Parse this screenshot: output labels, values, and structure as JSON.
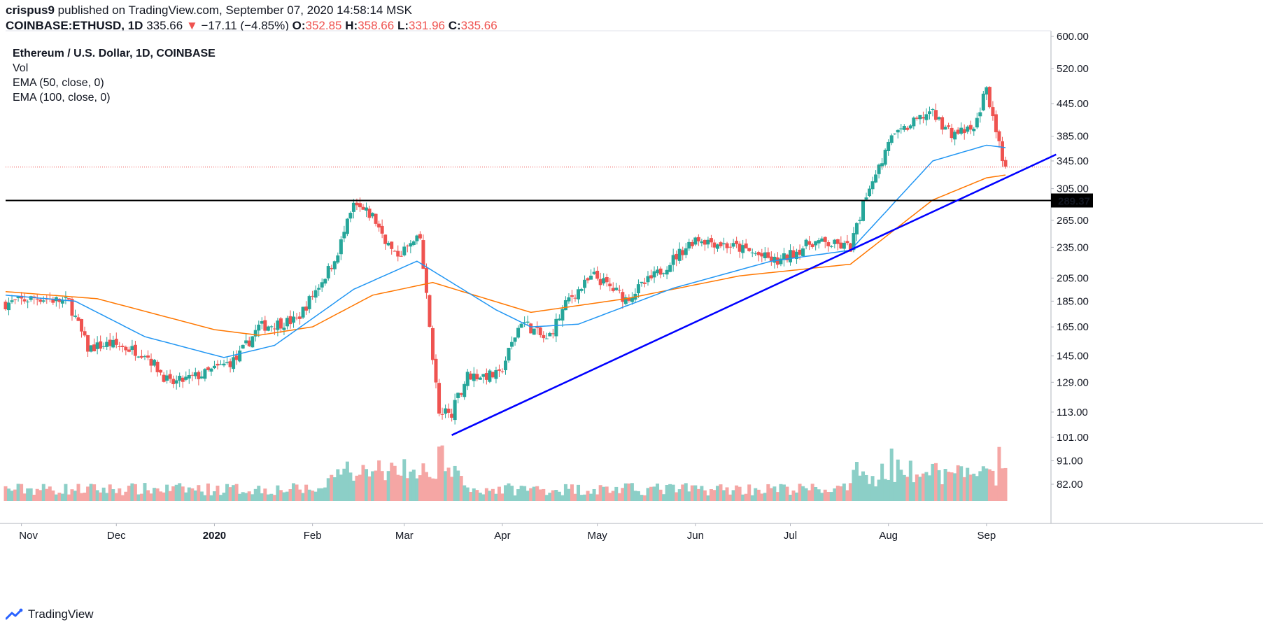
{
  "header": {
    "publisher": "crispus9",
    "published_text": "published on TradingView.com, September 07, 2020 14:58:14 MSK",
    "symbol": "COINBASE:ETHUSD, 1D",
    "last": "335.66",
    "arrow": "▼",
    "change": "−17.11 (−4.85%)",
    "o_label": "O:",
    "o": "352.85",
    "h_label": "H:",
    "h": "358.66",
    "l_label": "L:",
    "l": "331.96",
    "c_label": "C:",
    "c": "335.66"
  },
  "legend": {
    "title": "Ethereum / U.S. Dollar, 1D, COINBASE",
    "vol": "Vol",
    "ema50": "EMA (50, close, 0)",
    "ema100": "EMA (100, close, 0)"
  },
  "footer": {
    "brand": "TradingView",
    "icon": "tradingview-logo-icon"
  },
  "colors": {
    "up": "#26a69a",
    "down": "#ef5350",
    "ema50": "#2196f3",
    "ema100": "#ff7700",
    "trendline": "#0000ff",
    "hline": "#000000"
  },
  "chart_data": {
    "type": "candlestick",
    "symbol": "ETHUSD",
    "y_axis": {
      "scale": "log",
      "ticks": [
        82,
        91,
        101,
        113,
        129,
        145,
        165,
        185,
        205,
        235,
        265,
        305,
        345,
        385,
        445,
        520,
        600
      ],
      "tick_labels": [
        "82.00",
        "91.00",
        "101.00",
        "113.00",
        "129.00",
        "145.00",
        "165.00",
        "185.00",
        "205.00",
        "235.00",
        "265.00",
        "305.00",
        "345.00",
        "385.00",
        "445.00",
        "520.00",
        "600.00"
      ]
    },
    "x_axis": {
      "tick_labels": [
        "Nov",
        "Dec",
        "2020",
        "Feb",
        "Mar",
        "Apr",
        "May",
        "Jun",
        "Jul",
        "Aug",
        "Sep"
      ],
      "tick_dates": [
        "2019-11-01",
        "2019-12-01",
        "2020-01-01",
        "2020-02-01",
        "2020-03-01",
        "2020-04-01",
        "2020-05-01",
        "2020-06-01",
        "2020-07-01",
        "2020-08-01",
        "2020-09-01"
      ]
    },
    "candle_range": [
      "2019-10-27",
      "2020-09-07"
    ],
    "price_path": [
      {
        "date": "2019-10-27",
        "close": 183
      },
      {
        "date": "2019-11-06",
        "close": 188
      },
      {
        "date": "2019-11-16",
        "close": 184
      },
      {
        "date": "2019-11-22",
        "close": 150
      },
      {
        "date": "2019-11-29",
        "close": 153
      },
      {
        "date": "2019-12-10",
        "close": 147
      },
      {
        "date": "2019-12-18",
        "close": 128
      },
      {
        "date": "2019-12-29",
        "close": 134
      },
      {
        "date": "2020-01-08",
        "close": 143
      },
      {
        "date": "2020-01-15",
        "close": 165
      },
      {
        "date": "2020-01-27",
        "close": 170
      },
      {
        "date": "2020-02-08",
        "close": 222
      },
      {
        "date": "2020-02-14",
        "close": 282
      },
      {
        "date": "2020-02-20",
        "close": 270
      },
      {
        "date": "2020-02-27",
        "close": 226
      },
      {
        "date": "2020-03-06",
        "close": 244
      },
      {
        "date": "2020-03-12",
        "close": 112
      },
      {
        "date": "2020-03-16",
        "close": 113
      },
      {
        "date": "2020-03-21",
        "close": 133
      },
      {
        "date": "2020-03-31",
        "close": 133
      },
      {
        "date": "2020-04-07",
        "close": 170
      },
      {
        "date": "2020-04-15",
        "close": 155
      },
      {
        "date": "2020-04-22",
        "close": 187
      },
      {
        "date": "2020-04-30",
        "close": 207
      },
      {
        "date": "2020-05-10",
        "close": 187
      },
      {
        "date": "2020-05-20",
        "close": 209
      },
      {
        "date": "2020-06-01",
        "close": 245
      },
      {
        "date": "2020-06-15",
        "close": 234
      },
      {
        "date": "2020-06-27",
        "close": 220
      },
      {
        "date": "2020-07-08",
        "close": 241
      },
      {
        "date": "2020-07-20",
        "close": 235
      },
      {
        "date": "2020-07-26",
        "close": 310
      },
      {
        "date": "2020-08-02",
        "close": 380
      },
      {
        "date": "2020-08-14",
        "close": 430
      },
      {
        "date": "2020-08-21",
        "close": 390
      },
      {
        "date": "2020-08-28",
        "close": 395
      },
      {
        "date": "2020-09-01",
        "close": 480
      },
      {
        "date": "2020-09-04",
        "close": 385
      },
      {
        "date": "2020-09-07",
        "close": 335.66
      }
    ],
    "ema50_path": [
      {
        "date": "2019-10-27",
        "value": 190
      },
      {
        "date": "2019-11-18",
        "value": 185
      },
      {
        "date": "2019-12-10",
        "value": 158
      },
      {
        "date": "2020-01-04",
        "value": 144
      },
      {
        "date": "2020-01-20",
        "value": 152
      },
      {
        "date": "2020-02-14",
        "value": 195
      },
      {
        "date": "2020-03-05",
        "value": 221
      },
      {
        "date": "2020-03-30",
        "value": 178
      },
      {
        "date": "2020-04-10",
        "value": 165
      },
      {
        "date": "2020-04-25",
        "value": 167
      },
      {
        "date": "2020-05-25",
        "value": 196
      },
      {
        "date": "2020-06-25",
        "value": 221
      },
      {
        "date": "2020-07-20",
        "value": 232
      },
      {
        "date": "2020-08-15",
        "value": 345
      },
      {
        "date": "2020-09-01",
        "value": 370
      },
      {
        "date": "2020-09-07",
        "value": 366
      }
    ],
    "ema100_path": [
      {
        "date": "2019-10-27",
        "value": 193
      },
      {
        "date": "2019-11-25",
        "value": 187
      },
      {
        "date": "2020-01-01",
        "value": 163
      },
      {
        "date": "2020-01-15",
        "value": 159
      },
      {
        "date": "2020-02-01",
        "value": 165
      },
      {
        "date": "2020-02-20",
        "value": 190
      },
      {
        "date": "2020-03-10",
        "value": 201
      },
      {
        "date": "2020-04-10",
        "value": 176
      },
      {
        "date": "2020-05-10",
        "value": 187
      },
      {
        "date": "2020-06-15",
        "value": 207
      },
      {
        "date": "2020-07-20",
        "value": 218
      },
      {
        "date": "2020-08-15",
        "value": 290
      },
      {
        "date": "2020-09-01",
        "value": 320
      },
      {
        "date": "2020-09-07",
        "value": 324
      }
    ],
    "trendline": {
      "from": {
        "date": "2020-03-16",
        "value": 102
      },
      "to": {
        "date": "2020-09-23",
        "value": 355
      },
      "color": "#0000ff"
    },
    "horizontal_line": {
      "value": 289.37,
      "label": "289.37"
    },
    "last_price_line": 335.66,
    "volume": {
      "peak_dates": [
        "2020-03-12",
        "2020-03-13",
        "2020-08-02",
        "2020-09-05"
      ]
    }
  }
}
